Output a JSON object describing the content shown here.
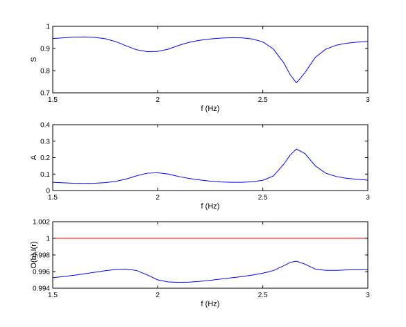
{
  "chart_data": [
    {
      "type": "line",
      "xlabel": "f (Hz)",
      "ylabel": "S",
      "xlim": [
        1.5,
        3
      ],
      "ylim": [
        0.7,
        1
      ],
      "xticks": [
        "1.5",
        "2",
        "2.5",
        "3"
      ],
      "yticks": [
        "0.7",
        "0.8",
        "0.9",
        "1"
      ],
      "grid": false,
      "series": [
        {
          "color": "#0000ff",
          "x": [
            1.5,
            1.55,
            1.6,
            1.65,
            1.7,
            1.75,
            1.8,
            1.85,
            1.9,
            1.95,
            2.0,
            2.05,
            2.1,
            2.15,
            2.2,
            2.25,
            2.3,
            2.35,
            2.4,
            2.45,
            2.5,
            2.55,
            2.6,
            2.63,
            2.66,
            2.7,
            2.75,
            2.8,
            2.85,
            2.9,
            2.95,
            3.0
          ],
          "y": [
            0.945,
            0.948,
            0.951,
            0.952,
            0.95,
            0.944,
            0.931,
            0.912,
            0.894,
            0.886,
            0.887,
            0.897,
            0.914,
            0.928,
            0.937,
            0.943,
            0.947,
            0.949,
            0.948,
            0.943,
            0.93,
            0.898,
            0.835,
            0.782,
            0.745,
            0.79,
            0.86,
            0.897,
            0.915,
            0.924,
            0.929,
            0.932
          ]
        }
      ]
    },
    {
      "type": "line",
      "xlabel": "f (Hz)",
      "ylabel": "A",
      "xlim": [
        1.5,
        3
      ],
      "ylim": [
        0,
        0.4
      ],
      "xticks": [
        "1.5",
        "2",
        "2.5",
        "3"
      ],
      "yticks": [
        "0",
        "0.1",
        "0.2",
        "0.3",
        "0.4"
      ],
      "grid": false,
      "series": [
        {
          "color": "#0000ff",
          "x": [
            1.5,
            1.55,
            1.6,
            1.65,
            1.7,
            1.75,
            1.8,
            1.85,
            1.9,
            1.95,
            2.0,
            2.05,
            2.1,
            2.15,
            2.2,
            2.25,
            2.3,
            2.35,
            2.4,
            2.45,
            2.5,
            2.55,
            2.6,
            2.63,
            2.66,
            2.7,
            2.75,
            2.8,
            2.85,
            2.9,
            2.95,
            3.0
          ],
          "y": [
            0.05,
            0.047,
            0.044,
            0.043,
            0.044,
            0.048,
            0.056,
            0.07,
            0.09,
            0.105,
            0.108,
            0.1,
            0.085,
            0.073,
            0.064,
            0.057,
            0.052,
            0.05,
            0.05,
            0.053,
            0.062,
            0.088,
            0.16,
            0.215,
            0.252,
            0.225,
            0.15,
            0.105,
            0.085,
            0.074,
            0.068,
            0.063
          ]
        }
      ]
    },
    {
      "type": "line",
      "xlabel": "f (Hz)",
      "ylabel": "O(b),I(r)",
      "xlim": [
        1.5,
        3
      ],
      "ylim": [
        0.994,
        1.002
      ],
      "xticks": [
        "1.5",
        "2",
        "2.5",
        "3"
      ],
      "yticks": [
        "0.994",
        "0.996",
        "0.998",
        "1",
        "1.002"
      ],
      "grid": false,
      "series": [
        {
          "color": "#0000ff",
          "x": [
            1.5,
            1.55,
            1.6,
            1.65,
            1.7,
            1.75,
            1.8,
            1.85,
            1.9,
            1.95,
            2.0,
            2.05,
            2.1,
            2.15,
            2.2,
            2.25,
            2.3,
            2.35,
            2.4,
            2.45,
            2.5,
            2.55,
            2.6,
            2.63,
            2.66,
            2.7,
            2.75,
            2.8,
            2.85,
            2.9,
            2.95,
            3.0
          ],
          "y": [
            0.99527,
            0.9954,
            0.99555,
            0.99573,
            0.99592,
            0.9961,
            0.99625,
            0.9963,
            0.99612,
            0.9956,
            0.995,
            0.99475,
            0.9947,
            0.99473,
            0.99482,
            0.99495,
            0.9951,
            0.99525,
            0.9954,
            0.99558,
            0.9958,
            0.99612,
            0.9967,
            0.9971,
            0.99725,
            0.9969,
            0.9963,
            0.99615,
            0.99615,
            0.9962,
            0.99622,
            0.99622
          ]
        },
        {
          "color": "#ff0000",
          "x": [
            1.5,
            3.0
          ],
          "y": [
            1.0,
            1.0
          ]
        }
      ]
    }
  ]
}
